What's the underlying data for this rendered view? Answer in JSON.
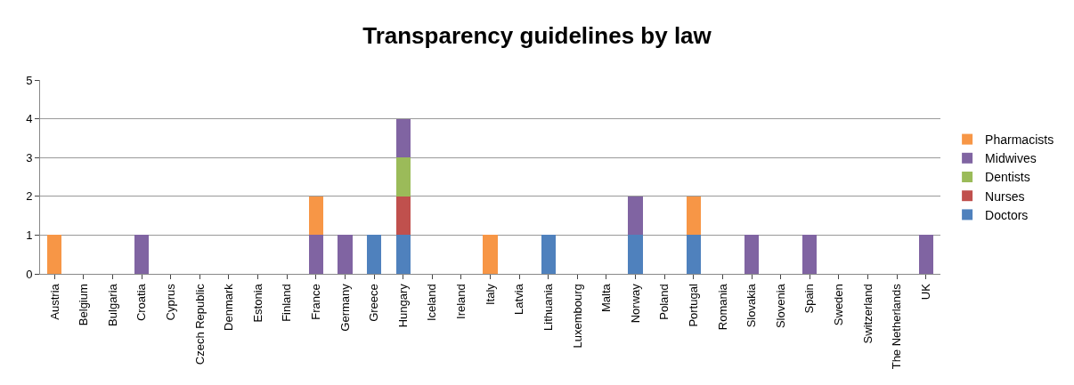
{
  "chart_data": {
    "type": "bar",
    "title": "Transparency guidelines by law",
    "stacked": true,
    "categories": [
      "Austria",
      "Belgium",
      "Bulgaria",
      "Croatia",
      "Cyprus",
      "Czech Republic",
      "Denmark",
      "Estonia",
      "Finland",
      "France",
      "Germany",
      "Greece",
      "Hungary",
      "Iceland",
      "Ireland",
      "Italy",
      "Latvia",
      "Lithuania",
      "Luxembourg",
      "Malta",
      "Norway",
      "Poland",
      "Portugal",
      "Romania",
      "Slovakia",
      "Slovenia",
      "Spain",
      "Sweden",
      "Switzerland",
      "The Netherlands",
      "UK"
    ],
    "series": [
      {
        "name": "Doctors",
        "color": "#4f81bd",
        "values": [
          0,
          0,
          0,
          0,
          0,
          0,
          0,
          0,
          0,
          0,
          0,
          1,
          1,
          0,
          0,
          0,
          0,
          1,
          0,
          0,
          1,
          0,
          1,
          0,
          0,
          0,
          0,
          0,
          0,
          0,
          0
        ]
      },
      {
        "name": "Nurses",
        "color": "#c0504d",
        "values": [
          0,
          0,
          0,
          0,
          0,
          0,
          0,
          0,
          0,
          0,
          0,
          0,
          1,
          0,
          0,
          0,
          0,
          0,
          0,
          0,
          0,
          0,
          0,
          0,
          0,
          0,
          0,
          0,
          0,
          0,
          0
        ]
      },
      {
        "name": "Dentists",
        "color": "#9bbb59",
        "values": [
          0,
          0,
          0,
          0,
          0,
          0,
          0,
          0,
          0,
          0,
          0,
          0,
          1,
          0,
          0,
          0,
          0,
          0,
          0,
          0,
          0,
          0,
          0,
          0,
          0,
          0,
          0,
          0,
          0,
          0,
          0
        ]
      },
      {
        "name": "Midwives",
        "color": "#8064a2",
        "values": [
          0,
          0,
          0,
          1,
          0,
          0,
          0,
          0,
          0,
          1,
          1,
          0,
          1,
          0,
          0,
          0,
          0,
          0,
          0,
          0,
          1,
          0,
          0,
          0,
          1,
          0,
          1,
          0,
          0,
          0,
          1
        ]
      },
      {
        "name": "Pharmacists",
        "color": "#f79646",
        "values": [
          1,
          0,
          0,
          0,
          0,
          0,
          0,
          0,
          0,
          1,
          0,
          0,
          0,
          0,
          0,
          1,
          0,
          0,
          0,
          0,
          0,
          0,
          1,
          0,
          0,
          0,
          0,
          0,
          0,
          0,
          0
        ]
      }
    ],
    "ylim": [
      0,
      5
    ],
    "yticks": [
      0,
      1,
      2,
      3,
      4,
      5
    ],
    "grid": "y",
    "legend": "right"
  }
}
